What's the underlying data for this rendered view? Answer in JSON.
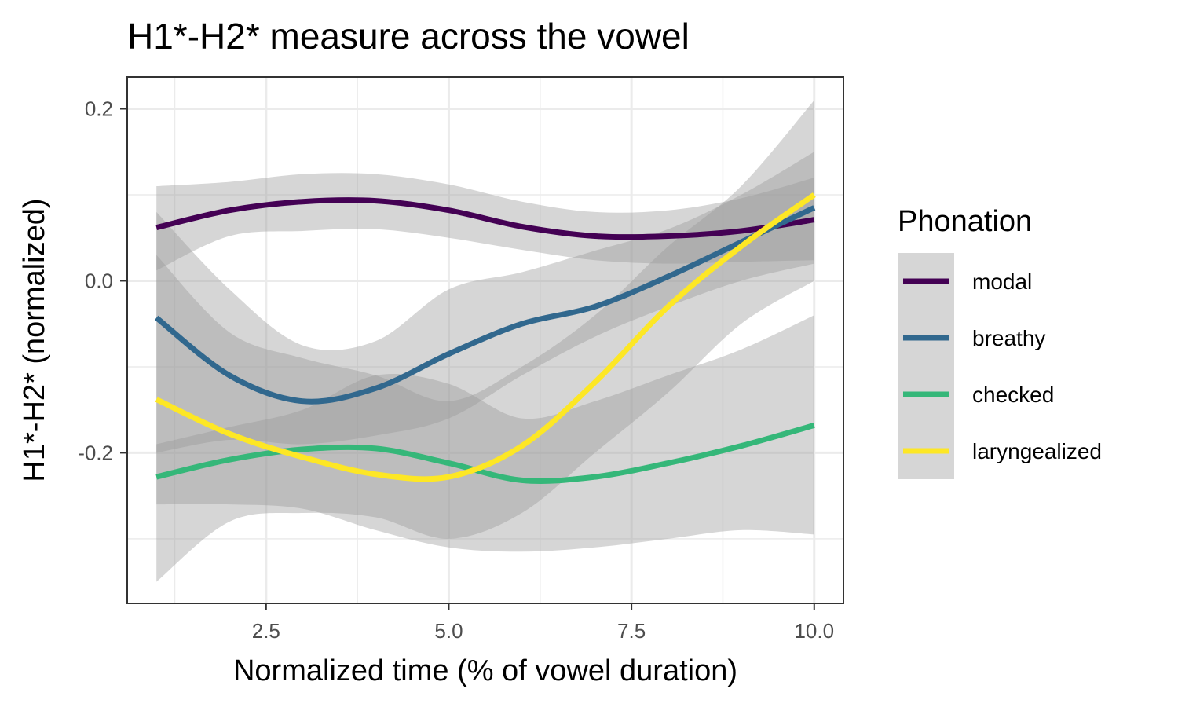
{
  "chart_data": {
    "type": "line",
    "title": "H1*-H2* measure across the vowel",
    "xlabel": "Normalized time (% of vowel duration)",
    "ylabel": "H1*-H2* (normalized)",
    "xlim": [
      0.6,
      10.4
    ],
    "ylim": [
      -0.375,
      0.237
    ],
    "x_ticks": [
      2.5,
      5.0,
      7.5,
      10.0
    ],
    "x_tick_labels": [
      "2.5",
      "5.0",
      "7.5",
      "10.0"
    ],
    "y_ticks": [
      -0.2,
      0.0,
      0.2
    ],
    "y_tick_labels": [
      "-0.2",
      "0.0",
      "0.2"
    ],
    "grid": true,
    "legend": {
      "title": "Phonation",
      "position": "right"
    },
    "x": [
      1,
      2,
      3,
      4,
      5,
      6,
      7,
      8,
      9,
      10
    ],
    "series": [
      {
        "name": "modal",
        "color": "#440154",
        "values": [
          0.062,
          0.082,
          0.092,
          0.093,
          0.082,
          0.063,
          0.052,
          0.052,
          0.058,
          0.071
        ],
        "lower": [
          0.012,
          0.052,
          0.058,
          0.06,
          0.05,
          0.036,
          0.024,
          0.02,
          0.022,
          0.024
        ],
        "upper": [
          0.11,
          0.115,
          0.124,
          0.124,
          0.112,
          0.092,
          0.08,
          0.082,
          0.096,
          0.12
        ]
      },
      {
        "name": "breathy",
        "color": "#31688e",
        "values": [
          -0.043,
          -0.11,
          -0.14,
          -0.125,
          -0.085,
          -0.05,
          -0.03,
          0.005,
          0.045,
          0.085
        ],
        "lower": [
          -0.2,
          -0.185,
          -0.19,
          -0.18,
          -0.16,
          -0.11,
          -0.065,
          -0.03,
          0.0,
          0.02
        ],
        "upper": [
          0.08,
          -0.01,
          -0.075,
          -0.07,
          -0.01,
          0.01,
          0.035,
          0.06,
          0.1,
          0.15
        ]
      },
      {
        "name": "checked",
        "color": "#35b779",
        "values": [
          -0.228,
          -0.208,
          -0.196,
          -0.195,
          -0.212,
          -0.232,
          -0.228,
          -0.212,
          -0.192,
          -0.168
        ],
        "lower": [
          -0.26,
          -0.26,
          -0.265,
          -0.29,
          -0.31,
          -0.315,
          -0.31,
          -0.3,
          -0.29,
          -0.295
        ],
        "upper": [
          -0.19,
          -0.17,
          -0.15,
          -0.11,
          -0.12,
          -0.16,
          -0.14,
          -0.11,
          -0.08,
          -0.04
        ]
      },
      {
        "name": "laryngealized",
        "color": "#fde725",
        "values": [
          -0.138,
          -0.178,
          -0.205,
          -0.225,
          -0.228,
          -0.192,
          -0.118,
          -0.03,
          0.04,
          0.1
        ],
        "lower": [
          -0.35,
          -0.28,
          -0.27,
          -0.275,
          -0.3,
          -0.27,
          -0.2,
          -0.13,
          -0.05,
          0.0
        ],
        "upper": [
          0.03,
          -0.06,
          -0.09,
          -0.11,
          -0.14,
          -0.1,
          -0.04,
          0.04,
          0.11,
          0.21
        ]
      }
    ]
  }
}
